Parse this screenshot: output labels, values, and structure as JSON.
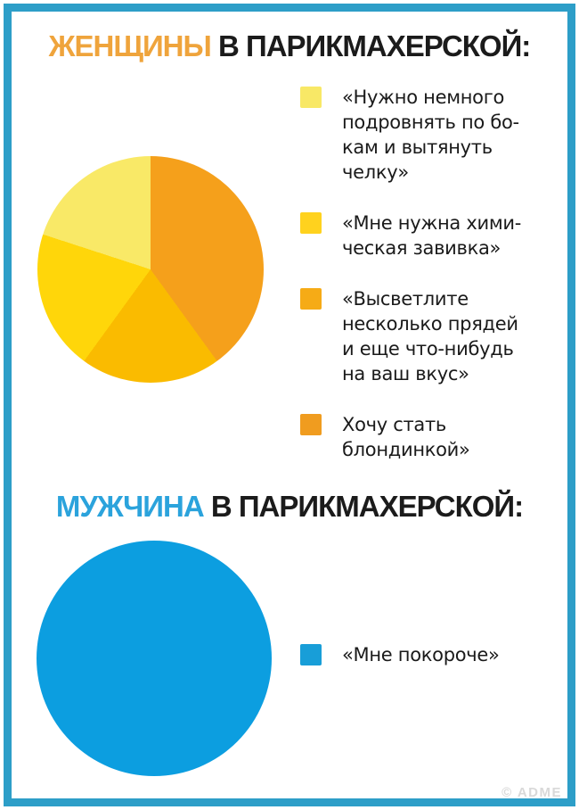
{
  "page": {
    "background": "#FFFFFF",
    "frame_color": "#2D9EC8",
    "watermark": "© ADME"
  },
  "sections": [
    {
      "title_highlight": "ЖЕНЩИНЫ",
      "title_rest": " В ПАРИКМАХЕРСКОЙ:",
      "highlight_color": "#EFA43C",
      "legend": [
        {
          "color": "#F8E866",
          "text": "«Нужно немного\nподровнять по бо-\nкам и вытянуть\nчелку»"
        },
        {
          "color": "#FFD21E",
          "text": "«Мне нужна хими-\nческая завивка»"
        },
        {
          "color": "#F6AB16",
          "text": "«Высветлите\nнесколько прядей\nи еще что-нибудь\nна ваш вкус»"
        },
        {
          "color": "#F09C1F",
          "text": "Хочу стать\nблондинкой»"
        }
      ]
    },
    {
      "title_highlight": "МУЖЧИНА",
      "title_rest": " В ПАРИКМАХЕРСКОЙ:",
      "highlight_color": "#2BA3DC",
      "legend": [
        {
          "color": "#189ED8",
          "text": "«Мне покороче»"
        }
      ]
    }
  ],
  "chart_data": [
    {
      "type": "pie",
      "title": "ЖЕНЩИНЫ В ПАРИКМАХЕРСКОЙ:",
      "direction": "clockwise",
      "start_angle_deg": 0,
      "legend_position": "right",
      "slices": [
        {
          "label": "Хочу стать блондинкой»",
          "value": 40,
          "color": "#F5A01B"
        },
        {
          "label": "«Высветлите несколько прядей и еще что-нибудь на ваш вкус»",
          "value": 20,
          "color": "#FABB00"
        },
        {
          "label": "«Мне нужна химическая завивка»",
          "value": 20,
          "color": "#FFD60A"
        },
        {
          "label": "«Нужно немного подровнять по бокам и вытянуть челку»",
          "value": 20,
          "color": "#F9E967"
        }
      ]
    },
    {
      "type": "pie",
      "title": "МУЖЧИНА В ПАРИКМАХЕРСКОЙ:",
      "direction": "clockwise",
      "start_angle_deg": 0,
      "legend_position": "right",
      "slices": [
        {
          "label": "«Мне покороче»",
          "value": 100,
          "color": "#0C9EE0"
        }
      ]
    }
  ]
}
